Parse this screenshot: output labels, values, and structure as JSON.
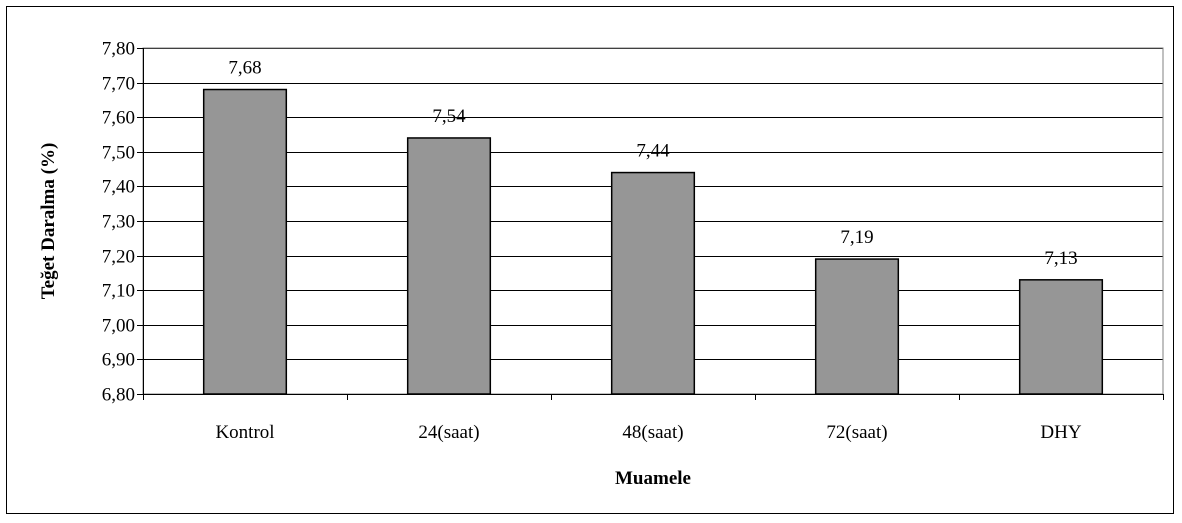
{
  "chart_data": {
    "type": "bar",
    "categories": [
      "Kontrol",
      "24(saat)",
      "48(saat)",
      "72(saat)",
      "DHY"
    ],
    "values": [
      7.68,
      7.54,
      7.44,
      7.19,
      7.13
    ],
    "value_labels": [
      "7,68",
      "7,54",
      "7,44",
      "7,19",
      "7,13"
    ],
    "xlabel": "Muamele",
    "ylabel": "Teğet Daralma (%)",
    "ylim": [
      6.8,
      7.8
    ],
    "yticks": [
      6.8,
      6.9,
      7.0,
      7.1,
      7.2,
      7.3,
      7.4,
      7.5,
      7.6,
      7.7,
      7.8
    ],
    "ytick_labels": [
      "6,80",
      "6,90",
      "7,00",
      "7,10",
      "7,20",
      "7,30",
      "7,40",
      "7,50",
      "7,60",
      "7,70",
      "7,80"
    ],
    "grid": true,
    "legend": "none",
    "colors": {
      "bar_fill": "#969696",
      "bar_stroke": "#000000",
      "gridline": "#000000",
      "plot_border": "#808080"
    }
  }
}
